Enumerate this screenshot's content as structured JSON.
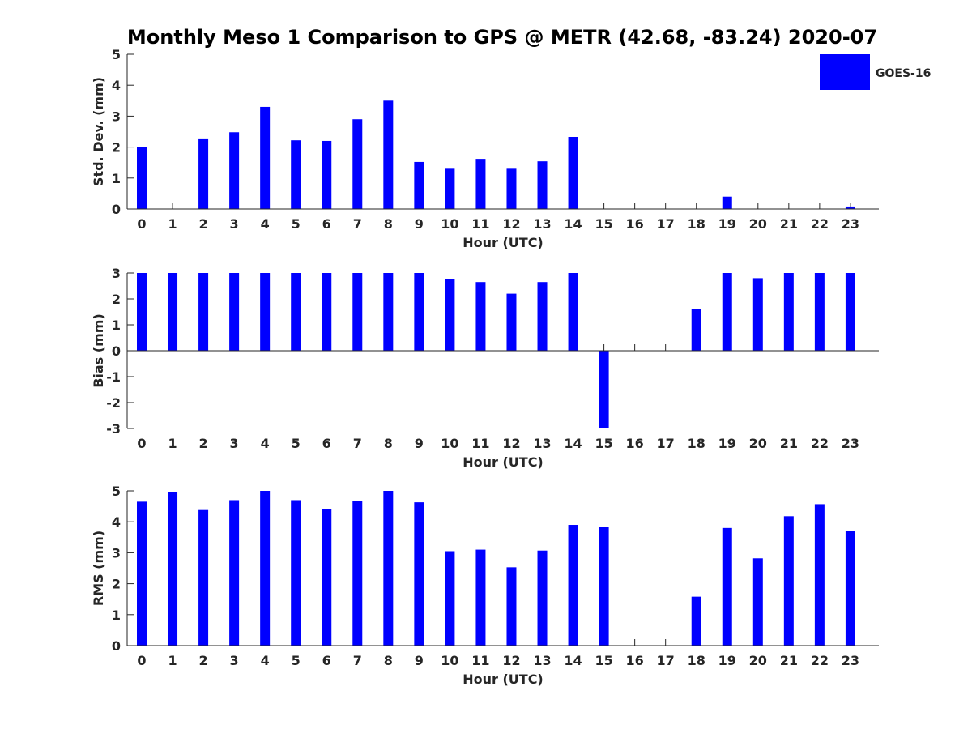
{
  "chart_data": {
    "title": "Monthly Meso 1 Comparison to GPS @ METR (42.68, -83.24) 2020-07",
    "legend": {
      "label": "GOES-16",
      "placement": "top-right"
    },
    "colors": {
      "bar": "#0000ff",
      "axis": "#262626",
      "title": "#000000",
      "background": "#ffffff"
    },
    "panels": [
      {
        "type": "bar",
        "xlabel": "Hour (UTC)",
        "ylabel": "Std. Dev. (mm)",
        "ylim": [
          0,
          5
        ],
        "yticks": [
          "0",
          "1",
          "2",
          "3",
          "4",
          "5"
        ],
        "categories": [
          "0",
          "1",
          "2",
          "3",
          "4",
          "5",
          "6",
          "7",
          "8",
          "9",
          "10",
          "11",
          "12",
          "13",
          "14",
          "15",
          "16",
          "17",
          "18",
          "19",
          "20",
          "21",
          "22",
          "23"
        ],
        "series": [
          {
            "name": "GOES-16",
            "values": [
              2.0,
              null,
              2.28,
              2.48,
              3.3,
              2.22,
              2.2,
              2.9,
              3.5,
              1.52,
              1.3,
              1.62,
              1.3,
              1.54,
              2.33,
              null,
              null,
              null,
              null,
              0.4,
              null,
              null,
              null,
              0.08
            ]
          }
        ],
        "grid": false
      },
      {
        "type": "bar",
        "xlabel": "Hour (UTC)",
        "ylabel": "Bias (mm)",
        "ylim": [
          -3,
          3
        ],
        "yticks": [
          "-3",
          "-2",
          "-1",
          "0",
          "1",
          "2",
          "3"
        ],
        "categories": [
          "0",
          "1",
          "2",
          "3",
          "4",
          "5",
          "6",
          "7",
          "8",
          "9",
          "10",
          "11",
          "12",
          "13",
          "14",
          "15",
          "16",
          "17",
          "18",
          "19",
          "20",
          "21",
          "22",
          "23"
        ],
        "series": [
          {
            "name": "GOES-16",
            "values": [
              3.0,
              3.0,
              3.0,
              3.0,
              3.0,
              3.0,
              3.0,
              3.0,
              3.0,
              3.0,
              2.75,
              2.65,
              2.2,
              2.65,
              3.0,
              -3.0,
              null,
              null,
              1.6,
              3.0,
              2.8,
              3.0,
              3.0,
              3.0
            ]
          }
        ],
        "grid": false
      },
      {
        "type": "bar",
        "xlabel": "Hour (UTC)",
        "ylabel": "RMS (mm)",
        "ylim": [
          0,
          5
        ],
        "yticks": [
          "0",
          "1",
          "2",
          "3",
          "4",
          "5"
        ],
        "categories": [
          "0",
          "1",
          "2",
          "3",
          "4",
          "5",
          "6",
          "7",
          "8",
          "9",
          "10",
          "11",
          "12",
          "13",
          "14",
          "15",
          "16",
          "17",
          "18",
          "19",
          "20",
          "21",
          "22",
          "23"
        ],
        "series": [
          {
            "name": "GOES-16",
            "values": [
              4.65,
              4.97,
              4.38,
              4.7,
              5.0,
              4.7,
              4.42,
              4.68,
              5.0,
              4.63,
              3.05,
              3.1,
              2.53,
              3.07,
              3.9,
              3.83,
              null,
              null,
              1.58,
              3.8,
              2.82,
              4.18,
              4.57,
              3.7
            ]
          }
        ],
        "grid": false
      }
    ]
  }
}
